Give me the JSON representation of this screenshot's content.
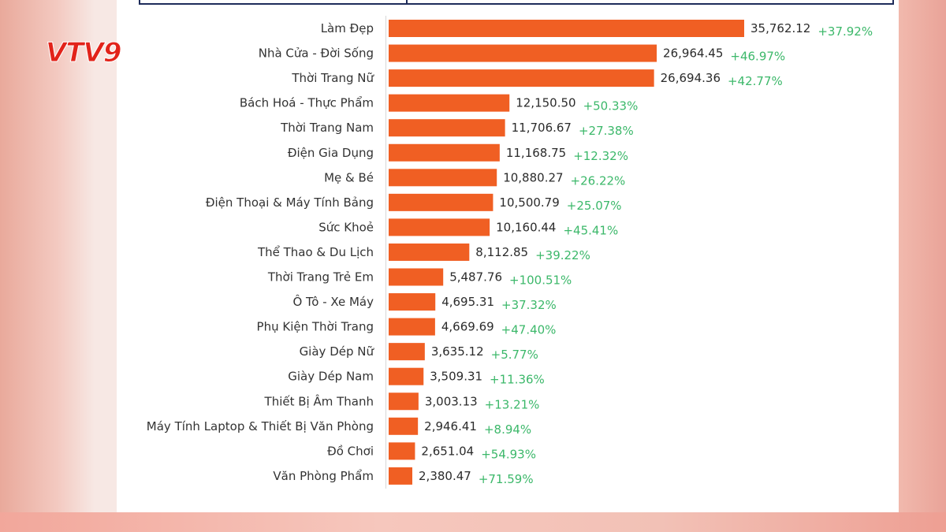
{
  "logo": {
    "text_main": "VTV",
    "text_channel": "9"
  },
  "colors": {
    "bar": "#f05f23",
    "value_text": "#2b2b2b",
    "growth_text": "#3cb86a",
    "label_text": "#333333",
    "header_border": "#1e2c5a"
  },
  "chart_data": {
    "type": "bar",
    "orientation": "horizontal",
    "categories": [
      "Làm Đẹp",
      "Nhà Cửa - Đời Sống",
      "Thời Trang Nữ",
      "Bách Hoá - Thực Phẩm",
      "Thời Trang Nam",
      "Điện Gia Dụng",
      "Mẹ & Bé",
      "Điện Thoại & Máy Tính Bảng",
      "Sức Khoẻ",
      "Thể Thao & Du Lịch",
      "Thời Trang Trẻ Em",
      "Ô Tô - Xe Máy",
      "Phụ Kiện Thời Trang",
      "Giày Dép Nữ",
      "Giày Dép Nam",
      "Thiết Bị Âm Thanh",
      "Máy Tính  Laptop & Thiết Bị Văn Phòng",
      "Đồ Chơi",
      "Văn Phòng Phẩm"
    ],
    "values": [
      35762.12,
      26964.45,
      26694.36,
      12150.5,
      11706.67,
      11168.75,
      10880.27,
      10500.79,
      10160.44,
      8112.85,
      5487.76,
      4695.31,
      4669.69,
      3635.12,
      3509.31,
      3003.13,
      2946.41,
      2651.04,
      2380.47
    ],
    "value_labels": [
      "35,762.12",
      "26,964.45",
      "26,694.36",
      "12,150.50",
      "11,706.67",
      "11,168.75",
      "10,880.27",
      "10,500.79",
      "10,160.44",
      "8,112.85",
      "5,487.76",
      "4,695.31",
      "4,669.69",
      "3,635.12",
      "3,509.31",
      "3,003.13",
      "2,946.41",
      "2,651.04",
      "2,380.47"
    ],
    "growth_labels": [
      "+37.92%",
      "+46.97%",
      "+42.77%",
      "+50.33%",
      "+27.38%",
      "+12.32%",
      "+26.22%",
      "+25.07%",
      "+45.41%",
      "+39.22%",
      "+100.51%",
      "+37.32%",
      "+47.40%",
      "+5.77%",
      "+11.36%",
      "+13.21%",
      "+8.94%",
      "+54.93%",
      "+71.59%"
    ],
    "title": "",
    "xlabel": "",
    "ylabel": "",
    "xlim": [
      0,
      35762.12
    ],
    "grid": false,
    "legend": "none"
  }
}
